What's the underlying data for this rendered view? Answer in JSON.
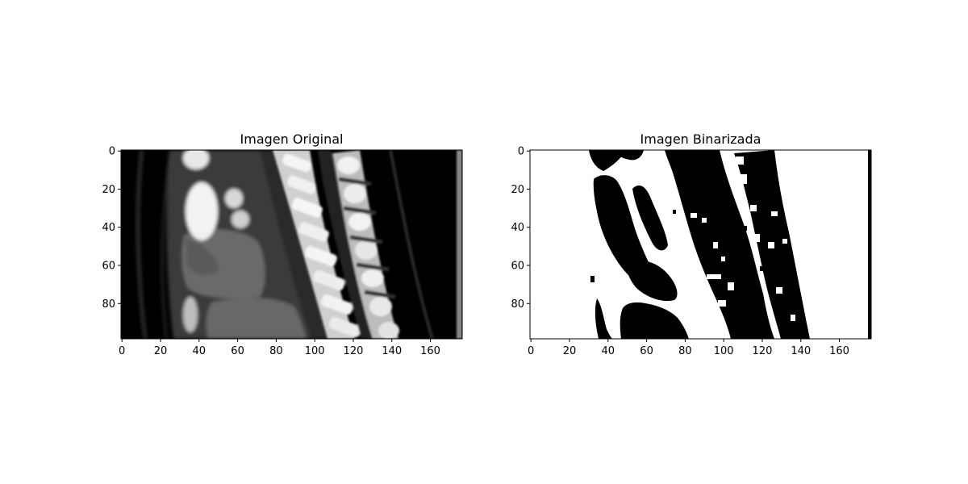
{
  "chart_data": [
    {
      "type": "heatmap",
      "title": "Imagen Original",
      "xlabel": "",
      "ylabel": "",
      "colormap": "gray",
      "image_width": 177,
      "image_height": 99,
      "x_ticks": [
        0,
        20,
        40,
        60,
        80,
        100,
        120,
        140,
        160
      ],
      "y_ticks": [
        0,
        20,
        40,
        60,
        80
      ],
      "y_inverted": true,
      "grid": false
    },
    {
      "type": "heatmap",
      "title": "Imagen Binarizada",
      "xlabel": "",
      "ylabel": "",
      "colormap": "binary",
      "image_width": 177,
      "image_height": 99,
      "x_ticks": [
        0,
        20,
        40,
        60,
        80,
        100,
        120,
        140,
        160
      ],
      "y_ticks": [
        0,
        20,
        40,
        60,
        80
      ],
      "y_inverted": true,
      "grid": false
    }
  ]
}
